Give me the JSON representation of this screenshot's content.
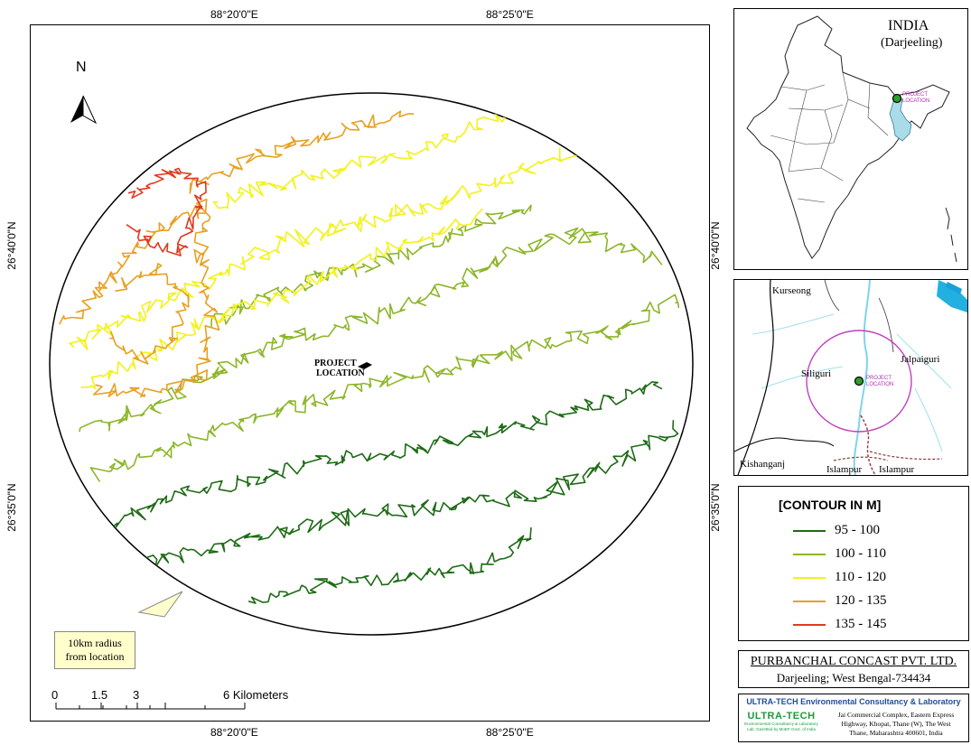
{
  "main_map": {
    "top_coords": [
      "88°20'0\"E",
      "88°25'0\"E"
    ],
    "bottom_coords": [
      "88°20'0\"E",
      "88°25'0\"E"
    ],
    "left_coords": [
      "26°40'0\"N",
      "26°35'0\"N"
    ],
    "right_coords": [
      "26°40'0\"N",
      "26°35'0\"N"
    ],
    "north_label": "N",
    "project_label_line1": "PROJECT",
    "project_label_line2": "LOCATION",
    "callout_line1": "10km radius",
    "callout_line2": "from location",
    "scale_labels": [
      "0",
      "1.5",
      "3",
      "6 Kilometers"
    ]
  },
  "inset_india": {
    "title": "INDIA",
    "subtitle": "(Darjeeling)",
    "marker_label_line1": "PROJECT",
    "marker_label_line2": "LOCATION"
  },
  "inset_local": {
    "places": [
      "Kurseong",
      "Jalpaiguri",
      "Siliguri",
      "Kishanganj",
      "Islampur",
      "Islampur"
    ],
    "marker_label_line1": "PROJECT",
    "marker_label_line2": "LOCATION"
  },
  "legend": {
    "title": "[CONTOUR IN M]",
    "items": [
      {
        "label": "95 - 100",
        "color": "#1e6b16"
      },
      {
        "label": "100 - 110",
        "color": "#8db62a"
      },
      {
        "label": "110 - 120",
        "color": "#f2f21a"
      },
      {
        "label": "120 - 135",
        "color": "#e8a020"
      },
      {
        "label": "135 - 145",
        "color": "#e03a20"
      }
    ]
  },
  "company": {
    "name": "PURBANCHAL CONCAST PVT. LTD.",
    "address": "Darjeeling; West Bengal-734434"
  },
  "consultant": {
    "title": "ULTRA-TECH Environmental Consultancy & Laboratory",
    "logo_text": "ULTRA-TECH",
    "logo_sub1": "Environmental Consultancy & Laboratory",
    "logo_sub2": "Lab. Gazetted by MoEF-Govt. of India",
    "address_line1": "Jai Commercial Complex, Eastern Express",
    "address_line2": "Highway, Khopat, Thane (W), The West",
    "address_line3": "Thane, Maharashtra 400601, India"
  }
}
